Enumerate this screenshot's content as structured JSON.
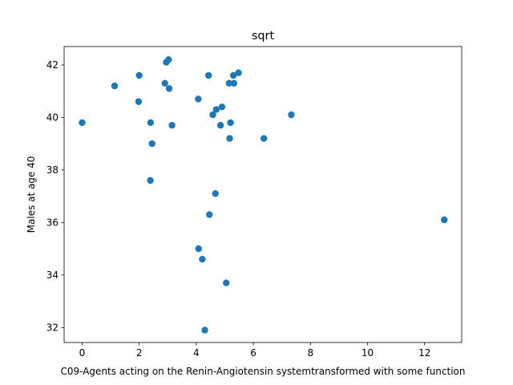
{
  "chart_data": {
    "type": "scatter",
    "title": "sqrt",
    "xlabel": "C09-Agents acting on the Renin-Angiotensin systemtransformed with some function",
    "ylabel": "Males at age 40",
    "xlim": [
      -0.63,
      13.3
    ],
    "ylim": [
      31.43,
      42.7
    ],
    "xticks": [
      0,
      2,
      4,
      6,
      8,
      10,
      12
    ],
    "yticks": [
      32,
      34,
      36,
      38,
      40,
      42
    ],
    "grid": false,
    "marker_color": "#1f77b4",
    "x": [
      0.0,
      1.14,
      2.0,
      1.98,
      2.4,
      2.45,
      2.39,
      2.9,
      2.95,
      3.03,
      3.05,
      3.15,
      4.07,
      4.08,
      4.21,
      4.3,
      4.43,
      4.46,
      4.58,
      4.67,
      4.7,
      4.85,
      4.9,
      5.05,
      5.15,
      5.17,
      5.2,
      5.3,
      5.32,
      5.48,
      6.37,
      7.33,
      12.69
    ],
    "y": [
      39.8,
      41.2,
      41.6,
      40.6,
      39.8,
      39.0,
      37.6,
      41.3,
      42.1,
      42.2,
      41.1,
      39.7,
      40.7,
      35.0,
      34.6,
      31.9,
      41.6,
      36.3,
      40.1,
      37.1,
      40.3,
      39.7,
      40.4,
      33.7,
      41.3,
      39.2,
      39.8,
      41.6,
      41.3,
      41.7,
      39.2,
      40.1,
      36.1
    ]
  }
}
